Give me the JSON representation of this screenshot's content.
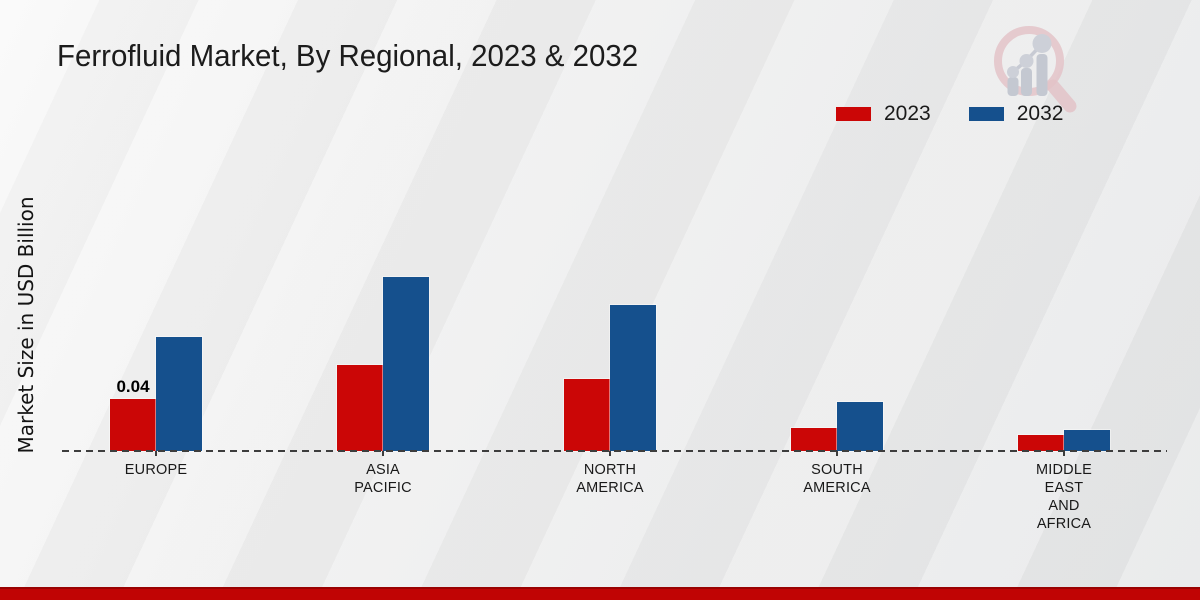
{
  "header": {
    "title": "Ferrofluid Market, By Regional, 2023 & 2032"
  },
  "logo": {
    "icon": "magnifier-growth-chart-logo",
    "ring_color": "#e3c3c8",
    "bars_color": "#c4c8d1",
    "dots_color": "#cdd0d8"
  },
  "footer": {
    "band_color": "#c00404",
    "band_border_color": "#9a0202"
  },
  "chart_data": {
    "type": "bar",
    "title": "Ferrofluid Market, By Regional, 2023 & 2032",
    "ylabel": "Market Size in USD Billion",
    "xlabel": "",
    "categories": [
      "EUROPE",
      "ASIA PACIFIC",
      "NORTH AMERICA",
      "SOUTH AMERICA",
      "MIDDLE EAST AND AFRICA"
    ],
    "category_display": [
      "EUROPE",
      "ASIA\nPACIFIC",
      "NORTH\nAMERICA",
      "SOUTH\nAMERICA",
      "MIDDLE\nEAST\nAND\nAFRICA"
    ],
    "series": [
      {
        "name": "2023",
        "color": "#cb0606",
        "values": [
          0.04,
          0.066,
          0.055,
          0.018,
          0.012
        ]
      },
      {
        "name": "2032",
        "color": "#15508d",
        "values": [
          0.088,
          0.134,
          0.112,
          0.038,
          0.016
        ]
      }
    ],
    "data_labels": [
      {
        "series": "2023",
        "category": "EUROPE",
        "text": "0.04"
      }
    ],
    "ylim": [
      0,
      0.15
    ],
    "grid": false,
    "legend_position": "top-right",
    "baseline_style": "dashed",
    "axis_color": "#3d3d3d"
  }
}
